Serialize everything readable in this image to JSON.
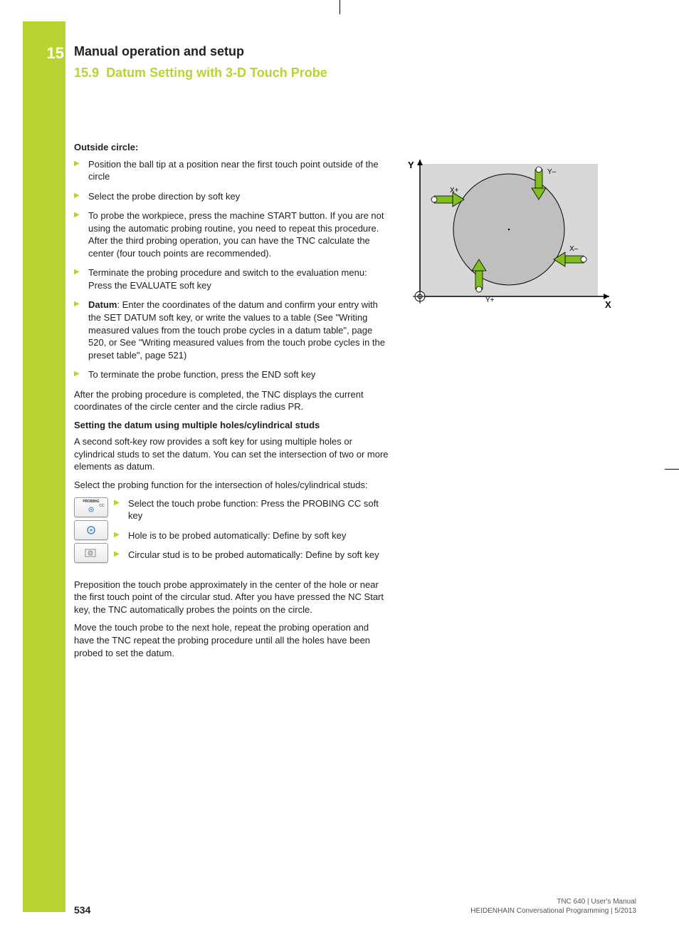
{
  "chapter": {
    "number": "15",
    "title": "Manual operation and setup",
    "section_number": "15.9",
    "section_title": "Datum Setting with 3-D Touch Probe"
  },
  "heading1": "Outside circle:",
  "bullets1": [
    "Position the ball tip at a position near the first touch point outside of the circle",
    "Select the probe direction by soft key",
    "To probe the workpiece, press the machine START button. If you are not using the automatic probing routine, you need to repeat this procedure. After the third probing operation, you can have the TNC calculate the center (four touch points are recommended).",
    "Terminate the probing procedure and switch to the evaluation menu: Press the EVALUATE soft key"
  ],
  "bullet_datum_prefix": "Datum",
  "bullet_datum_text": ": Enter the coordinates of the datum and confirm your entry with the SET DATUM soft key, or write the values to a table (See \"Writing measured values from the touch probe cycles in a datum table\", page 520, or See \"Writing measured values from the touch probe cycles in the preset table\", page 521)",
  "bullet_terminate": "To terminate the probe function, press the END soft key",
  "para1": "After the probing procedure is completed, the TNC displays the current coordinates of the circle center and the circle radius PR.",
  "heading2": "Setting the datum using multiple holes/cylindrical studs",
  "para2": "A second soft-key row provides a soft key for using multiple holes or cylindrical studs to set the datum. You can set the intersection of two or more elements as datum.",
  "para3": "Select the probing function for the intersection of holes/cylindrical studs:",
  "softkeys": [
    {
      "label": "PROBING CC",
      "text": "Select the touch probe function: Press the PROBING CC soft key"
    },
    {
      "label": "",
      "text": "Hole is to be probed automatically: Define by soft key"
    },
    {
      "label": "",
      "text": "Circular stud is to be probed automatically: Define by soft key"
    }
  ],
  "para4": "Preposition the touch probe approximately in the center of the hole or near the first touch point of the circular stud. After you have pressed the NC Start key, the TNC automatically probes the points on the circle.",
  "para5": "Move the touch probe to the next hole, repeat the probing operation and have the TNC repeat the probing procedure until all the holes have been probed to set the datum.",
  "diagram": {
    "bg_rect": "#d8d8d8",
    "circle_fill": "#bfbfbf",
    "arrow_fill": "#7fbf1f",
    "axis_color": "#000000",
    "labels": {
      "x": "X",
      "y": "Y",
      "xp": "X+",
      "xm": "X–",
      "yp": "Y+",
      "ym": "Y–"
    }
  },
  "footer": {
    "page_number": "534",
    "line1": "TNC 640 | User's Manual",
    "line2": "HEIDENHAIN Conversational Programming | 5/2013"
  }
}
